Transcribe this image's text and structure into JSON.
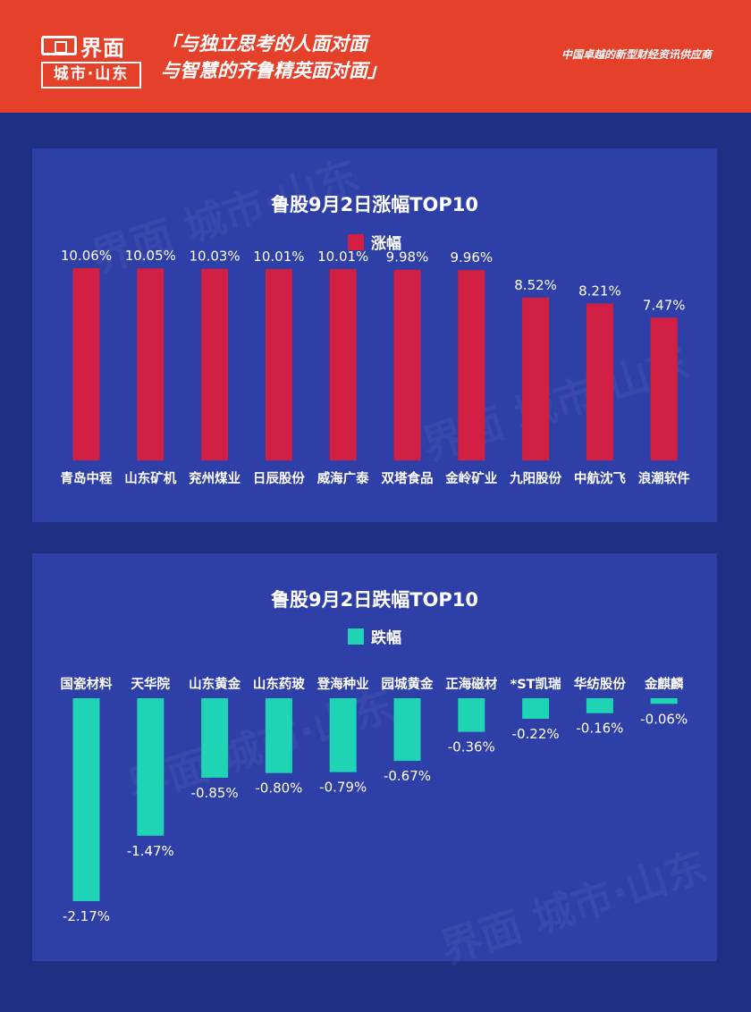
{
  "header": {
    "logo_name": "界面",
    "logo_city": "城市·山东",
    "slogan_line1": "「与独立思考的人面对面",
    "slogan_line2": "与智慧的齐鲁精英面对面」",
    "tagline": "中国卓越的新型财经资讯供应商"
  },
  "colors": {
    "header_bg": "#e4402a",
    "page_bg": "#1f3084",
    "panel_bg": "#2e3fa7",
    "gain_bar": "#d21f44",
    "loss_bar": "#1fd4b4"
  },
  "chart_data": [
    {
      "type": "bar",
      "title": "鲁股9月2日涨幅TOP10",
      "series": [
        {
          "name": "涨幅",
          "values": [
            10.06,
            10.05,
            10.03,
            10.01,
            10.01,
            9.98,
            9.96,
            8.52,
            8.21,
            7.47
          ]
        }
      ],
      "categories": [
        "青岛中程",
        "山东矿机",
        "兖州煤业",
        "日辰股份",
        "威海广泰",
        "双塔食品",
        "金岭矿业",
        "九阳股份",
        "中航沈飞",
        "浪潮软件"
      ],
      "labels": [
        "10.06%",
        "10.05%",
        "10.03%",
        "10.01%",
        "10.01%",
        "9.98%",
        "9.96%",
        "8.52%",
        "8.21%",
        "7.47%"
      ],
      "unit": "%",
      "ylim": [
        0,
        10.5
      ],
      "grid": false,
      "legend": "top-center"
    },
    {
      "type": "bar",
      "title": "鲁股9月2日跌幅TOP10",
      "series": [
        {
          "name": "跌幅",
          "values": [
            -2.17,
            -1.47,
            -0.85,
            -0.8,
            -0.79,
            -0.67,
            -0.36,
            -0.22,
            -0.16,
            -0.06
          ]
        }
      ],
      "categories": [
        "国瓷材料",
        "天华院",
        "山东黄金",
        "山东药玻",
        "登海种业",
        "园城黄金",
        "正海磁材",
        "*ST凯瑞",
        "华纺股份",
        "金麒麟"
      ],
      "labels": [
        "-2.17%",
        "-1.47%",
        "-0.85%",
        "-0.80%",
        "-0.79%",
        "-0.67%",
        "-0.36%",
        "-0.22%",
        "-0.16%",
        "-0.06%"
      ],
      "unit": "%",
      "ylim": [
        -2.2,
        0
      ],
      "grid": false,
      "legend": "top-center"
    }
  ]
}
